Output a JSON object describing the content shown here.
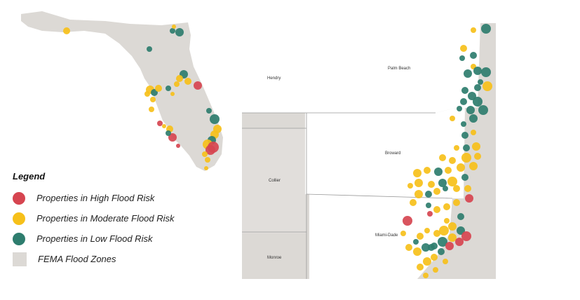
{
  "legend": {
    "title": "Legend",
    "items": [
      {
        "label": "Properties in High Flood Risk",
        "color": "#d64550",
        "shape": "circle"
      },
      {
        "label": "Properties in Moderate Flood Risk",
        "color": "#f6c01a",
        "shape": "circle"
      },
      {
        "label": "Properties in Low Flood Risk",
        "color": "#2e7d6e",
        "shape": "circle"
      },
      {
        "label": "FEMA Flood Zones",
        "color": "#dcd9d5",
        "shape": "square"
      }
    ]
  },
  "counties": {
    "hendry": "Hendry",
    "palm_beach": "Palm Beach",
    "collier": "Collier",
    "broward": "Broward",
    "monroe": "Monroe",
    "miami_dade": "Miami-Dade"
  },
  "colors": {
    "high": "#d64550",
    "moderate": "#f6c01a",
    "low": "#2e7d6e",
    "flood_zone": "#dcd9d5",
    "land": "#ffffff",
    "border": "#9a9a9a"
  }
}
